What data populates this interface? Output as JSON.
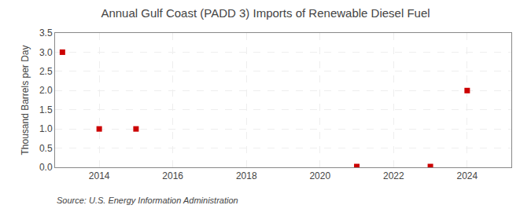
{
  "chart_data": {
    "type": "scatter",
    "title": "Annual Gulf Coast (PADD 3) Imports of Renewable Diesel Fuel",
    "ylabel": "Thousand Barrels per Day",
    "annotations": [
      "Source: U.S. Energy Information Administration"
    ],
    "x": [
      2013,
      2014,
      2015,
      2021,
      2023,
      2024
    ],
    "values": [
      3.0,
      1.0,
      1.0,
      0.02,
      0.02,
      2.0
    ],
    "color": "#cc0000",
    "marker": "square",
    "xlim": [
      2012.8,
      2025.2
    ],
    "ylim": [
      0.0,
      3.5
    ],
    "xticks": [
      2014,
      2016,
      2018,
      2020,
      2022,
      2024
    ],
    "yticks": [
      {
        "value": 0,
        "label": "0.0"
      },
      0.5,
      {
        "value": 1,
        "label": "1.0"
      },
      1.5,
      {
        "value": 2,
        "label": "2.0"
      },
      2.5,
      {
        "value": 3,
        "label": "3.0"
      },
      3.5
    ],
    "grid": true
  }
}
